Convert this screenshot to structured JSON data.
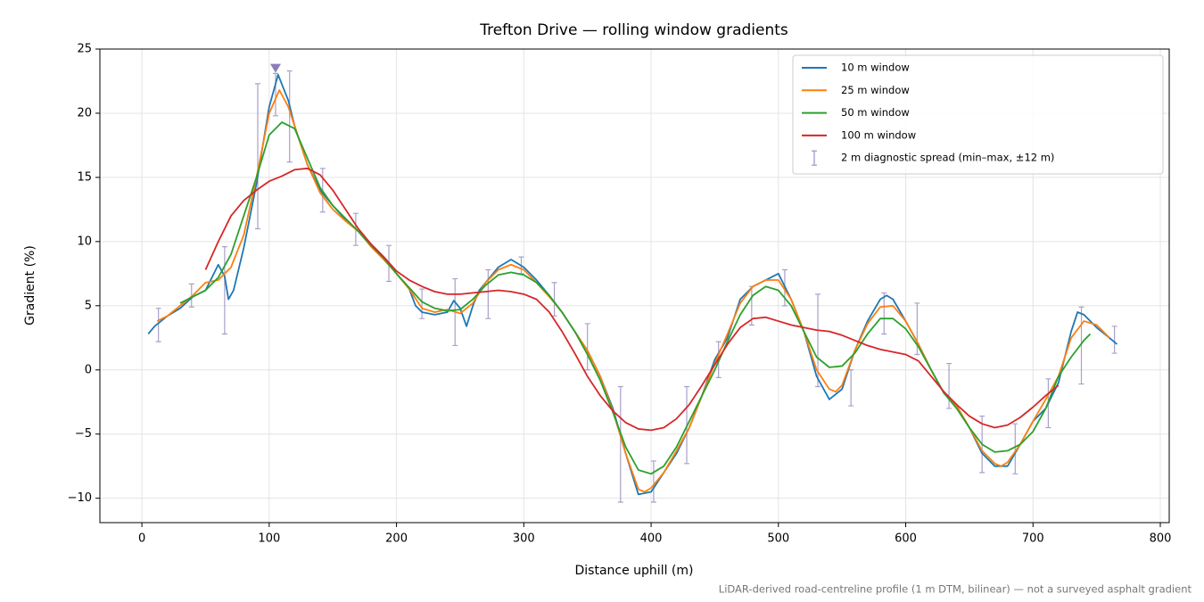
{
  "chart_data": {
    "type": "line",
    "title": "Trefton Drive — rolling window gradients",
    "x_label": "Distance uphill (m)",
    "y_label": "Gradient (%)",
    "footnote": "LiDAR-derived road-centreline profile (1 m DTM, bilinear) — not a surveyed asphalt gradient",
    "xlim": [
      -33,
      807
    ],
    "ylim": [
      -11.9,
      25
    ],
    "xticks": [
      0,
      100,
      200,
      300,
      400,
      500,
      600,
      700,
      800
    ],
    "yticks": [
      {
        "value": -10,
        "label": "−10"
      },
      {
        "value": -5,
        "label": "−5"
      },
      0,
      5,
      10,
      15,
      20,
      25
    ],
    "grid": true,
    "legend": "upper right",
    "series": [
      {
        "name": "10 m window",
        "color": "#1f77b4",
        "x": [
          5,
          10,
          20,
          30,
          40,
          50,
          55,
          60,
          65,
          68,
          72,
          80,
          90,
          100,
          107,
          115,
          120,
          130,
          140,
          150,
          160,
          170,
          180,
          190,
          200,
          210,
          215,
          220,
          230,
          240,
          245,
          250,
          255,
          260,
          265,
          270,
          280,
          290,
          300,
          310,
          320,
          330,
          340,
          350,
          360,
          370,
          380,
          390,
          400,
          410,
          420,
          430,
          440,
          450,
          460,
          470,
          480,
          490,
          500,
          510,
          520,
          530,
          540,
          550,
          560,
          570,
          580,
          585,
          590,
          600,
          610,
          620,
          630,
          640,
          650,
          660,
          670,
          680,
          690,
          700,
          710,
          720,
          730,
          735,
          740,
          750,
          760,
          766
        ],
        "values": [
          2.8,
          3.4,
          4.2,
          4.8,
          5.7,
          6.2,
          7.2,
          8.2,
          7.3,
          5.5,
          6.2,
          9.5,
          14.5,
          20.5,
          23,
          21,
          19,
          16,
          14,
          12.8,
          11.7,
          10.8,
          9.8,
          8.8,
          7.5,
          6.3,
          5,
          4.5,
          4.3,
          4.5,
          5.4,
          4.8,
          3.4,
          5,
          6.2,
          6.8,
          8,
          8.6,
          8,
          7,
          5.8,
          4.5,
          3,
          1.5,
          -0.5,
          -3,
          -6.5,
          -9.7,
          -9.5,
          -8,
          -6.5,
          -4.5,
          -2,
          0.8,
          2.5,
          5.5,
          6.5,
          7,
          7.5,
          5.5,
          3,
          -0.5,
          -2.3,
          -1.5,
          1.5,
          3.8,
          5.5,
          5.8,
          5.5,
          3.8,
          2,
          0,
          -1.8,
          -2.8,
          -4.5,
          -6.5,
          -7.5,
          -7.5,
          -5.8,
          -4,
          -3,
          -1,
          3,
          4.5,
          4.3,
          3.3,
          2.5,
          2
        ]
      },
      {
        "name": "25 m window",
        "color": "#ff7f0e",
        "x": [
          12,
          20,
          30,
          40,
          50,
          60,
          70,
          80,
          90,
          100,
          108,
          115,
          120,
          130,
          140,
          150,
          160,
          170,
          180,
          190,
          200,
          210,
          220,
          230,
          240,
          250,
          260,
          270,
          280,
          290,
          300,
          310,
          320,
          330,
          340,
          350,
          360,
          370,
          380,
          390,
          395,
          400,
          410,
          420,
          430,
          440,
          450,
          460,
          470,
          480,
          490,
          500,
          510,
          520,
          530,
          540,
          545,
          550,
          560,
          570,
          580,
          590,
          600,
          610,
          620,
          630,
          640,
          650,
          660,
          670,
          675,
          680,
          690,
          700,
          710,
          720,
          730,
          740,
          750,
          760
        ],
        "values": [
          3.8,
          4.2,
          5,
          5.8,
          6.8,
          7,
          8,
          10.5,
          15,
          20,
          21.8,
          20.5,
          19,
          16,
          13.8,
          12.5,
          11.6,
          10.8,
          9.6,
          8.6,
          7.5,
          6.3,
          4.8,
          4.5,
          4.7,
          4.4,
          5.2,
          6.8,
          7.8,
          8.2,
          7.8,
          6.8,
          5.7,
          4.5,
          3,
          1.5,
          -0.5,
          -3.2,
          -6.5,
          -9.3,
          -9.5,
          -9.2,
          -8,
          -6.3,
          -4.5,
          -2,
          0.5,
          2.8,
          5.2,
          6.5,
          7,
          7,
          5.5,
          3,
          0,
          -1.5,
          -1.7,
          -1.2,
          1.5,
          3.6,
          4.9,
          5,
          3.8,
          2,
          0,
          -1.8,
          -2.8,
          -4.5,
          -6.3,
          -7.3,
          -7.5,
          -7.2,
          -5.8,
          -4,
          -2.3,
          -0.5,
          2.5,
          3.8,
          3.5,
          2.5
        ]
      },
      {
        "name": "50 m window",
        "color": "#2ca02c",
        "x": [
          30,
          40,
          50,
          60,
          70,
          80,
          90,
          100,
          110,
          120,
          130,
          140,
          150,
          160,
          170,
          180,
          190,
          200,
          210,
          220,
          230,
          240,
          250,
          260,
          270,
          280,
          290,
          300,
          310,
          320,
          330,
          340,
          350,
          360,
          370,
          380,
          390,
          400,
          410,
          420,
          430,
          440,
          450,
          460,
          470,
          480,
          490,
          500,
          510,
          520,
          530,
          540,
          550,
          560,
          570,
          580,
          590,
          600,
          610,
          620,
          630,
          640,
          650,
          660,
          670,
          680,
          690,
          700,
          710,
          720,
          730,
          740,
          745
        ],
        "values": [
          5.2,
          5.7,
          6.2,
          7.2,
          9,
          12,
          15,
          18.3,
          19.3,
          18.8,
          16.5,
          14.2,
          12.8,
          11.8,
          10.8,
          9.7,
          8.7,
          7.5,
          6.4,
          5.3,
          4.8,
          4.6,
          4.7,
          5.5,
          6.6,
          7.4,
          7.6,
          7.4,
          6.8,
          5.8,
          4.5,
          3,
          1.2,
          -0.8,
          -3.3,
          -6,
          -7.8,
          -8.1,
          -7.5,
          -6,
          -4,
          -2,
          0,
          2.2,
          4.3,
          5.8,
          6.5,
          6.2,
          5,
          3,
          1,
          0.2,
          0.3,
          1.3,
          2.8,
          4,
          4,
          3.2,
          1.8,
          0,
          -1.8,
          -3,
          -4.5,
          -5.8,
          -6.4,
          -6.3,
          -5.8,
          -4.8,
          -3,
          -0.5,
          1,
          2.3,
          2.8
        ]
      },
      {
        "name": "100 m window",
        "color": "#d62728",
        "x": [
          50,
          60,
          70,
          80,
          90,
          100,
          110,
          120,
          130,
          140,
          150,
          160,
          170,
          180,
          190,
          200,
          210,
          220,
          230,
          240,
          250,
          260,
          270,
          280,
          290,
          300,
          310,
          320,
          330,
          340,
          350,
          360,
          370,
          380,
          390,
          400,
          410,
          420,
          430,
          440,
          450,
          460,
          470,
          480,
          490,
          500,
          510,
          520,
          530,
          540,
          550,
          560,
          570,
          580,
          590,
          600,
          610,
          620,
          630,
          640,
          650,
          660,
          670,
          680,
          690,
          700,
          710,
          720
        ],
        "values": [
          7.8,
          10,
          12,
          13.2,
          14,
          14.7,
          15.1,
          15.6,
          15.7,
          15.2,
          14,
          12.5,
          11,
          9.8,
          8.8,
          7.7,
          7,
          6.5,
          6.1,
          5.9,
          5.9,
          6,
          6.1,
          6.2,
          6.1,
          5.9,
          5.5,
          4.5,
          3,
          1.3,
          -0.5,
          -2,
          -3.2,
          -4.1,
          -4.6,
          -4.7,
          -4.5,
          -3.8,
          -2.7,
          -1.2,
          0.4,
          2,
          3.3,
          4,
          4.1,
          3.8,
          3.5,
          3.3,
          3.1,
          3,
          2.7,
          2.3,
          1.9,
          1.6,
          1.4,
          1.2,
          0.7,
          -0.5,
          -1.7,
          -2.7,
          -3.6,
          -4.2,
          -4.5,
          -4.3,
          -3.7,
          -2.9,
          -2,
          -1.2
        ]
      }
    ],
    "errorbars": {
      "name": "2 m diagnostic spread (min–max, ±12 m)",
      "color": "#9a8fc0",
      "x": [
        13,
        39,
        65,
        91,
        105,
        116,
        142,
        168,
        194,
        220,
        246,
        272,
        298,
        324,
        350,
        376,
        402,
        428,
        453,
        479,
        505,
        531,
        557,
        583,
        609,
        634,
        660,
        686,
        712,
        738,
        764
      ],
      "low": [
        2.2,
        4.9,
        2.8,
        11,
        19.8,
        16.2,
        12.3,
        9.7,
        6.9,
        4,
        1.9,
        4,
        7.5,
        4.2,
        0,
        -10.3,
        -10.3,
        -7.3,
        -0.6,
        3.5,
        5,
        -1.3,
        -2.8,
        2.8,
        1.2,
        -3,
        -8,
        -8.1,
        -4.5,
        -1.1,
        1.3
      ],
      "high": [
        4.8,
        6.7,
        9.6,
        22.3,
        23.1,
        23.3,
        15.7,
        12.2,
        9.7,
        6.3,
        7.1,
        7.8,
        8.8,
        6.8,
        3.6,
        -1.3,
        -7.1,
        -1.3,
        2.2,
        6.5,
        7.8,
        5.9,
        0,
        6,
        5.2,
        0.5,
        -3.6,
        -4.2,
        -0.7,
        4.9,
        3.4
      ]
    },
    "marker": {
      "x": 105,
      "y": 23.5,
      "color": "#8c7fb8"
    }
  }
}
